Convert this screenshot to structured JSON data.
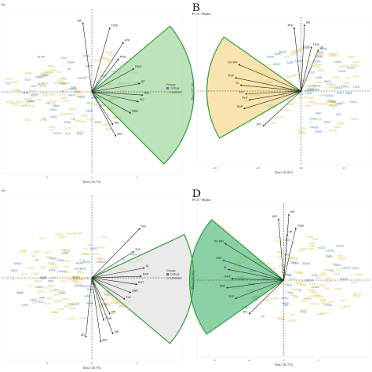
{
  "colors": {
    "blue": "#3b7fb8",
    "yellow": "#d8c04a",
    "green_stroke": "#2f9e3a",
    "green_fill": "#8fd18a",
    "orange_fill": "#f5d27a",
    "orange_stroke": "#2f9e3a",
    "grey_fill": "#dcdcdc",
    "dark_green_fill": "#3fb26a",
    "arrow": "#222222"
  },
  "chart_data": [
    {
      "type": "scatter",
      "panel": "A",
      "letter": "",
      "title": "lot",
      "xlabel": "Dim1 (43.7%)",
      "ylabel": "",
      "xlim": [
        -6,
        6
      ],
      "ylim": [
        -5,
        5
      ],
      "x_ticks": [
        "-3",
        "0",
        "3"
      ],
      "legend": {
        "title": "Groups",
        "entries": [
          "Cultivar",
          "Landrace"
        ],
        "placement": "right"
      },
      "sector": {
        "type": "right",
        "fill": "green_fill",
        "start_deg": -45,
        "end_deg": 40
      },
      "variables": [
        {
          "name": "SW",
          "x": -0.6,
          "y": 4.2
        },
        {
          "name": "TGW",
          "x": 1.2,
          "y": 3.9
        },
        {
          "name": "ATE",
          "x": 2.1,
          "y": 3.0
        },
        {
          "name": "PNS",
          "x": 1.8,
          "y": 2.0
        },
        {
          "name": "PWS",
          "x": 2.8,
          "y": 1.4
        },
        {
          "name": "SP",
          "x": 3.2,
          "y": 0.5
        },
        {
          "name": "SLE",
          "x": 3.4,
          "y": -0.2
        },
        {
          "name": "FLF",
          "x": 3.1,
          "y": -0.6
        },
        {
          "name": "SEG",
          "x": 2.6,
          "y": -1.3
        },
        {
          "name": "SPL",
          "x": 1.4,
          "y": -2.0
        },
        {
          "name": "SKF",
          "x": 1.6,
          "y": -2.7
        }
      ]
    },
    {
      "type": "scatter",
      "panel": "B",
      "letter": "B",
      "title": "PCA - Biplot",
      "xlabel": "Dim1 (43.8%)",
      "ylabel": "Dim2 (17.1%)",
      "xlim": [
        -6,
        4
      ],
      "ylim": [
        -5,
        5
      ],
      "x_ticks": [
        "-5.0",
        "-2.5",
        "0.0",
        "2.5"
      ],
      "legend": {
        "title": "",
        "entries": [],
        "placement": "none"
      },
      "sector": {
        "type": "left",
        "fill": "orange_fill",
        "start_deg": 145,
        "end_deg": 210
      },
      "variables": [
        {
          "name": "ATE",
          "x": -0.4,
          "y": 4.3
        },
        {
          "name": "SW",
          "x": 0.2,
          "y": 4.5
        },
        {
          "name": "TGW",
          "x": 0.6,
          "y": 3.0
        },
        {
          "name": "SR",
          "x": 1.0,
          "y": 2.8
        },
        {
          "name": "GS WN",
          "x": -3.6,
          "y": 1.8
        },
        {
          "name": "NSP",
          "x": -3.8,
          "y": 0.9
        },
        {
          "name": "SL",
          "x": -3.5,
          "y": 0.4
        },
        {
          "name": "FLF",
          "x": -3.2,
          "y": -0.2
        },
        {
          "name": "PHT",
          "x": -3.0,
          "y": -0.6
        },
        {
          "name": "SNP",
          "x": -3.3,
          "y": -1.2
        },
        {
          "name": "SPL",
          "x": -2.2,
          "y": -2.4
        }
      ]
    },
    {
      "type": "scatter",
      "panel": "C",
      "letter": "",
      "title": "lot",
      "xlabel": "Dim1 (40.7%)",
      "ylabel": "",
      "xlim": [
        -6,
        6
      ],
      "ylim": [
        -5,
        5
      ],
      "x_ticks": [
        "-3",
        "0",
        "3"
      ],
      "legend": {
        "title": "Groups",
        "entries": [
          "Cultivar",
          "Landrace"
        ],
        "placement": "right"
      },
      "sector": {
        "type": "right",
        "fill": "grey_fill",
        "start_deg": -40,
        "end_deg": 25
      },
      "variables": [
        {
          "name": "SW",
          "x": 3.2,
          "y": 3.0
        },
        {
          "name": "SLE",
          "x": 2.8,
          "y": 1.6
        },
        {
          "name": "SL",
          "x": 3.5,
          "y": 0.6
        },
        {
          "name": "NSP",
          "x": 3.3,
          "y": 0.1
        },
        {
          "name": "PHT",
          "x": 3.0,
          "y": -0.4
        },
        {
          "name": "SNP",
          "x": 2.6,
          "y": -0.9
        },
        {
          "name": "FLF",
          "x": 2.2,
          "y": -1.3
        },
        {
          "name": "SPL",
          "x": 1.2,
          "y": -2.2
        },
        {
          "name": "SR",
          "x": -0.4,
          "y": -3.6
        },
        {
          "name": "ATE",
          "x": 0.6,
          "y": -3.9
        },
        {
          "name": "SW",
          "x": 1.4,
          "y": -3.4
        },
        {
          "name": "TGW",
          "x": 0.8,
          "y": -2.6
        }
      ]
    },
    {
      "type": "scatter",
      "panel": "D",
      "letter": "D",
      "title": "PCA - Biplot",
      "xlabel": "Dim1 (40.7%)",
      "ylabel": "Dim2 (18.3%)",
      "xlim": [
        -5,
        5
      ],
      "ylim": [
        -5,
        5
      ],
      "x_ticks": [
        "-4",
        "-2",
        "0",
        "2"
      ],
      "legend": {
        "title": "",
        "entries": [],
        "placement": "none"
      },
      "sector": {
        "type": "left",
        "fill": "dark_green_fill",
        "start_deg": 140,
        "end_deg": 215
      },
      "variables": [
        {
          "name": "ATE",
          "x": -0.3,
          "y": 4.0
        },
        {
          "name": "SW",
          "x": 0.3,
          "y": 4.3
        },
        {
          "name": "TGW",
          "x": 0.7,
          "y": 3.4
        },
        {
          "name": "SR",
          "x": 0.2,
          "y": 3.0
        },
        {
          "name": "GS WN",
          "x": -3.4,
          "y": 2.4
        },
        {
          "name": "NSP",
          "x": -3.5,
          "y": 1.3
        },
        {
          "name": "SL",
          "x": -3.2,
          "y": 0.7
        },
        {
          "name": "PHT",
          "x": -3.0,
          "y": 0.1
        },
        {
          "name": "SNP",
          "x": -3.3,
          "y": -0.5
        },
        {
          "name": "FLF",
          "x": -2.8,
          "y": -1.2
        },
        {
          "name": "SPL",
          "x": -2.0,
          "y": -2.2
        }
      ]
    }
  ]
}
